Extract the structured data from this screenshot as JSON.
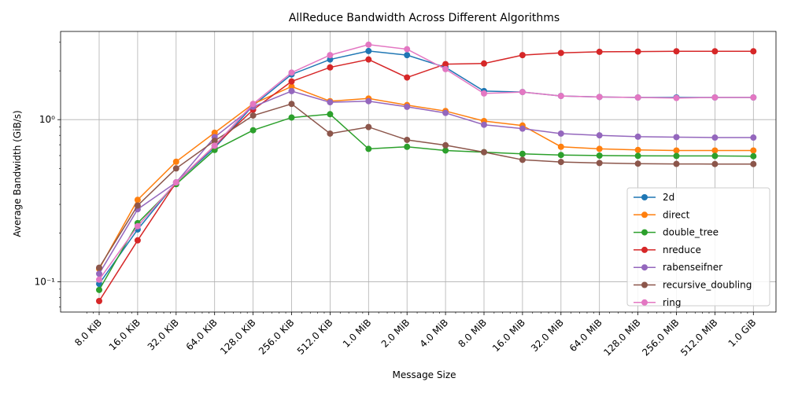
{
  "chart_data": {
    "type": "line",
    "title": "AllReduce Bandwidth Across Different Algorithms",
    "xlabel": "Message Size",
    "ylabel": "Average Bandwidth (GiB/s)",
    "yscale": "log",
    "xscale": "log2",
    "ylim": [
      0.065,
      3.5
    ],
    "y_ticks": [
      {
        "value": 0.1,
        "label": "10⁻¹"
      },
      {
        "value": 1,
        "label": "10⁰"
      }
    ],
    "categories": [
      "8.0 KiB",
      "16.0 KiB",
      "32.0 KiB",
      "64.0 KiB",
      "128.0 KiB",
      "256.0 KiB",
      "512.0 KiB",
      "1.0 MiB",
      "2.0 MiB",
      "4.0 MiB",
      "8.0 MiB",
      "16.0 MiB",
      "32.0 MiB",
      "64.0 MiB",
      "128.0 MiB",
      "256.0 MiB",
      "512.0 MiB",
      "1.0 GiB"
    ],
    "grid": true,
    "legend_position": "lower-right",
    "series": [
      {
        "name": "2d",
        "color": "#1f77b4",
        "values": [
          0.097,
          0.21,
          0.41,
          0.67,
          1.22,
          1.9,
          2.35,
          2.65,
          2.5,
          2.1,
          1.5,
          1.48,
          1.4,
          1.38,
          1.37,
          1.37,
          1.37,
          1.37
        ]
      },
      {
        "name": "direct",
        "color": "#ff7f0e",
        "values": [
          0.12,
          0.32,
          0.55,
          0.83,
          1.25,
          1.6,
          1.3,
          1.35,
          1.23,
          1.13,
          0.98,
          0.92,
          0.68,
          0.66,
          0.65,
          0.645,
          0.645,
          0.645
        ]
      },
      {
        "name": "double_tree",
        "color": "#2ca02c",
        "values": [
          0.089,
          0.23,
          0.4,
          0.65,
          0.86,
          1.03,
          1.08,
          0.66,
          0.68,
          0.645,
          0.63,
          0.615,
          0.605,
          0.6,
          0.598,
          0.597,
          0.597,
          0.595
        ]
      },
      {
        "name": "nreduce",
        "color": "#d62728",
        "values": [
          0.076,
          0.18,
          0.41,
          0.69,
          1.15,
          1.72,
          2.1,
          2.35,
          1.82,
          2.2,
          2.22,
          2.5,
          2.58,
          2.62,
          2.63,
          2.64,
          2.64,
          2.64
        ]
      },
      {
        "name": "rabenseifner",
        "color": "#9467bd",
        "values": [
          0.112,
          0.28,
          0.41,
          0.78,
          1.2,
          1.5,
          1.28,
          1.3,
          1.2,
          1.1,
          0.93,
          0.88,
          0.82,
          0.8,
          0.785,
          0.78,
          0.775,
          0.775
        ]
      },
      {
        "name": "recursive_doubling",
        "color": "#8c564b",
        "values": [
          0.122,
          0.295,
          0.5,
          0.74,
          1.06,
          1.25,
          0.82,
          0.9,
          0.75,
          0.695,
          0.63,
          0.565,
          0.548,
          0.54,
          0.535,
          0.533,
          0.532,
          0.532
        ]
      },
      {
        "name": "ring",
        "color": "#e377c2",
        "values": [
          0.103,
          0.22,
          0.41,
          0.69,
          1.25,
          1.95,
          2.5,
          2.9,
          2.72,
          2.05,
          1.45,
          1.48,
          1.4,
          1.38,
          1.37,
          1.36,
          1.37,
          1.37
        ]
      }
    ]
  }
}
